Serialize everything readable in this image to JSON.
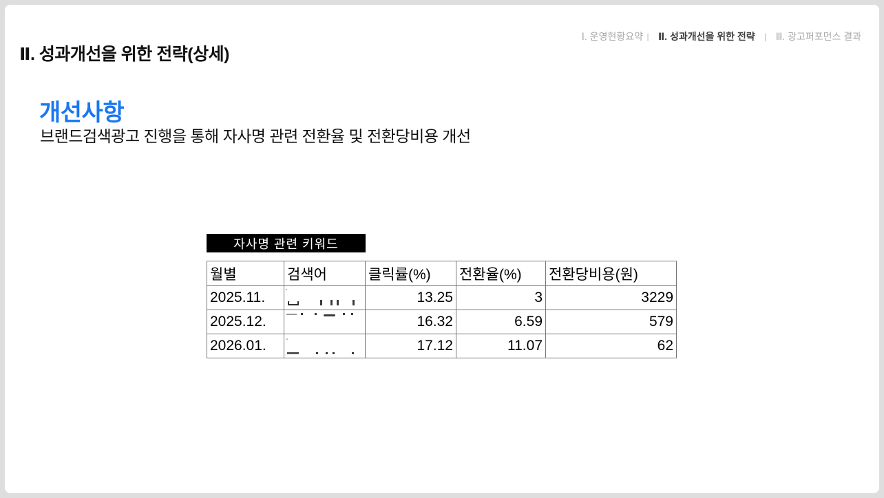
{
  "breadcrumb": {
    "section1": "Ⅰ. 운영현황요약",
    "separator1": "ㅣ",
    "section2": "Ⅱ. 성과개선을 위한 전략",
    "separator2": "ㅣ",
    "section3": "Ⅲ. 광고퍼포먼스 결과"
  },
  "slide": {
    "title": "Ⅱ. 성과개선을 위한 전략(상세)",
    "heading": "개선사항",
    "description": "브랜드검색광고 진행을 통해 자사명 관련 전환율 및 전환당비용 개선",
    "table_label": "자사명 관련 키워드"
  },
  "table": {
    "headers": {
      "month": "월별",
      "keyword": "검색어",
      "ctr": "클릭률(%)",
      "cvr": "전환율(%)",
      "cpa": "전환당비용(원)"
    },
    "rows": [
      {
        "month": "2025.11.",
        "keyword": "",
        "ctr": "13.25",
        "cvr": "3",
        "cpa": "3229"
      },
      {
        "month": "2025.12.",
        "keyword": "",
        "ctr": "16.32",
        "cvr": "6.59",
        "cpa": "579"
      },
      {
        "month": "2026.01.",
        "keyword": "",
        "ctr": "17.12",
        "cvr": "11.07",
        "cpa": "62"
      }
    ],
    "keyword_cells_state": "redacted"
  },
  "colors": {
    "accent_blue": "#1877f2",
    "breadcrumb_gray": "#a9a9a9",
    "breadcrumb_active": "#3d3d3d",
    "table_border": "#777777",
    "label_bg": "#000000",
    "frame_gray": "#dedede"
  }
}
